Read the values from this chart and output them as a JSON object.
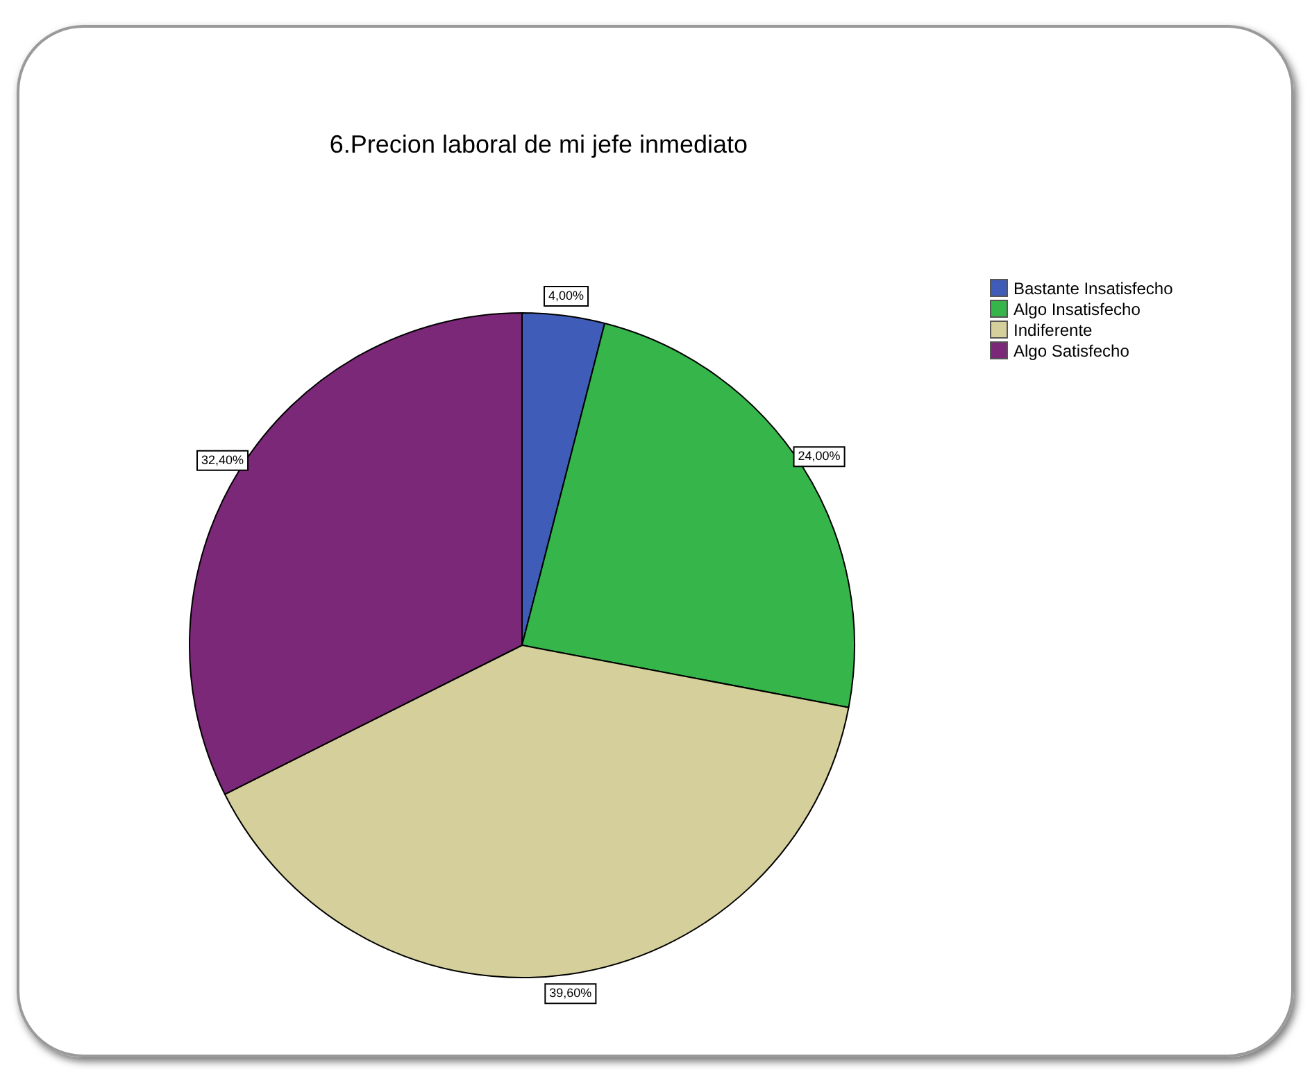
{
  "chart_data": {
    "type": "pie",
    "title": "6.Precion laboral de mi jefe inmediato",
    "categories": [
      "Bastante Insatisfecho",
      "Algo Insatisfecho",
      "Indiferente",
      "Algo Satisfecho"
    ],
    "values": [
      4,
      24,
      39.6,
      32.4
    ],
    "colors": [
      "#3f5cb8",
      "#36b54b",
      "#d5cf9b",
      "#7a2877"
    ],
    "value_labels": [
      "4,00%",
      "24,00%",
      "39,60%",
      "32,40%"
    ],
    "legend": "top right"
  }
}
